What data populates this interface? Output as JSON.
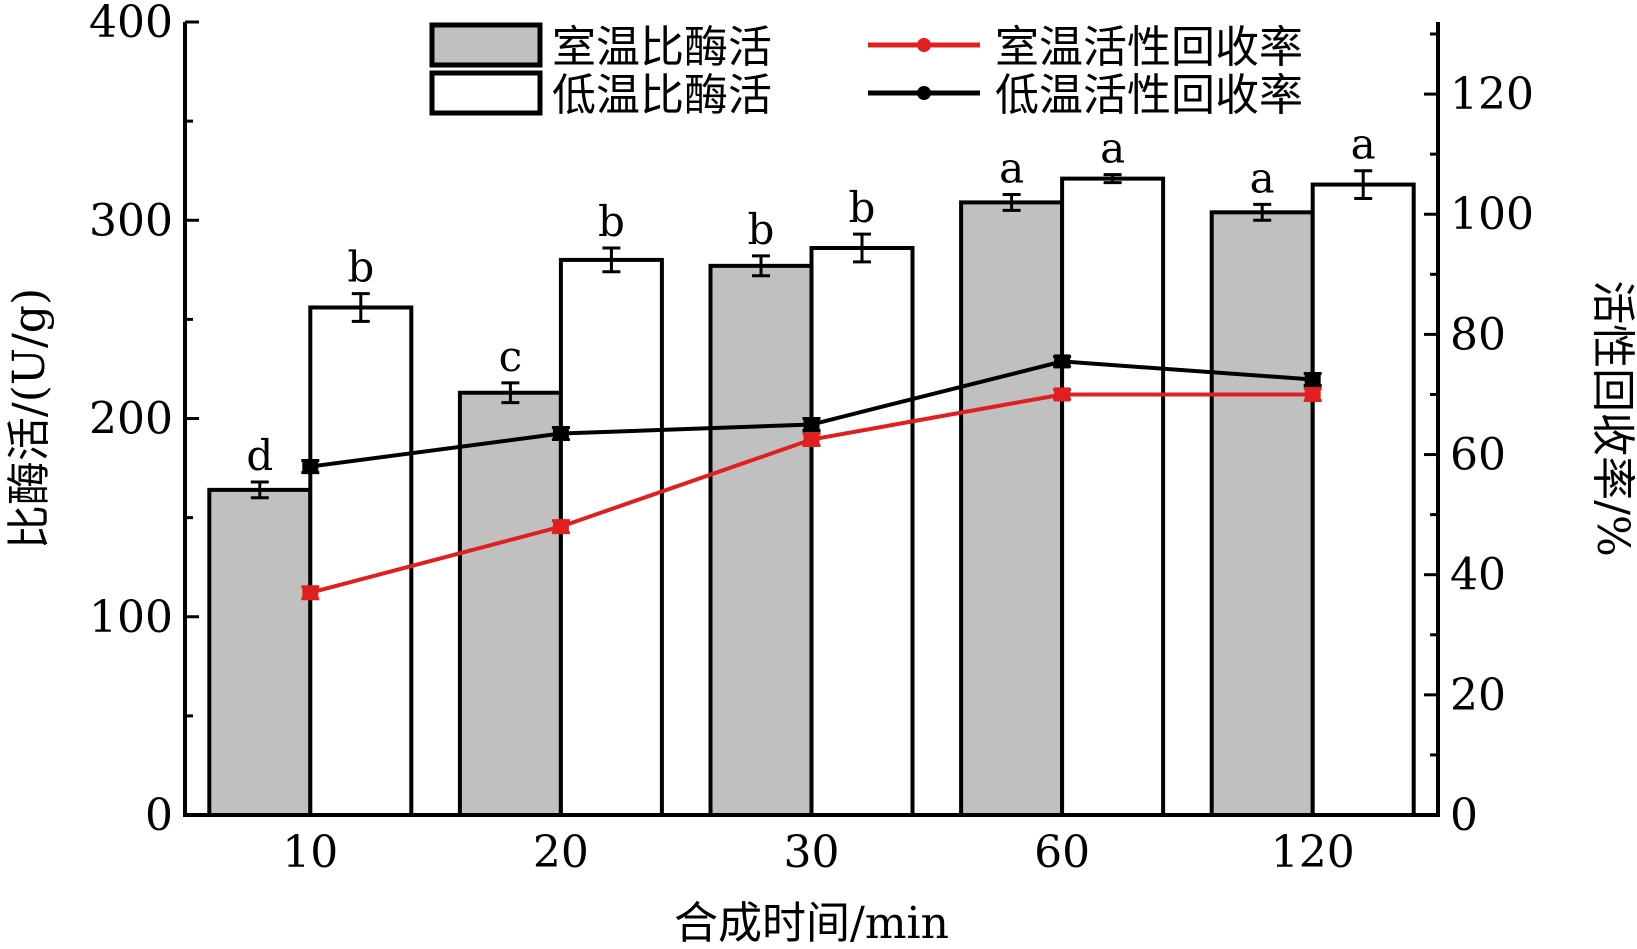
{
  "chart_data": {
    "type": "bar",
    "categories": [
      "10",
      "20",
      "30",
      "60",
      "120"
    ],
    "xlabel": "合成时间/min",
    "ylabel": "比酶活/(U/g)",
    "y2label": "活性回收率/%",
    "ylim": [
      0,
      400
    ],
    "y2lim": [
      0,
      132
    ],
    "yticks": [
      0,
      100,
      200,
      300,
      400
    ],
    "y2ticks": [
      0,
      20,
      40,
      60,
      80,
      100,
      120
    ],
    "bar_series": [
      {
        "name": "室温比酶活",
        "color": "#c0c0c0",
        "values": [
          164,
          213,
          277,
          309,
          304
        ],
        "errors": [
          4,
          5,
          5,
          4,
          4
        ],
        "letters": [
          "d",
          "c",
          "b",
          "a",
          "a"
        ]
      },
      {
        "name": "低温比酶活",
        "color": "#ffffff",
        "values": [
          256,
          280,
          286,
          321,
          318
        ],
        "errors": [
          7,
          6,
          7,
          2,
          7
        ],
        "letters": [
          "b",
          "b",
          "b",
          "a",
          "a"
        ]
      }
    ],
    "line_series": [
      {
        "name": "室温活性回收率",
        "color": "#e02020",
        "values": [
          37,
          48,
          62.5,
          70,
          70
        ],
        "errors": [
          1,
          1,
          1,
          0.8,
          1
        ]
      },
      {
        "name": "低温活性回收率",
        "color": "#000000",
        "values": [
          58,
          63.5,
          65,
          75.5,
          72.5
        ],
        "errors": [
          1,
          1,
          1,
          0.8,
          1
        ]
      }
    ],
    "legend_position": "top"
  }
}
